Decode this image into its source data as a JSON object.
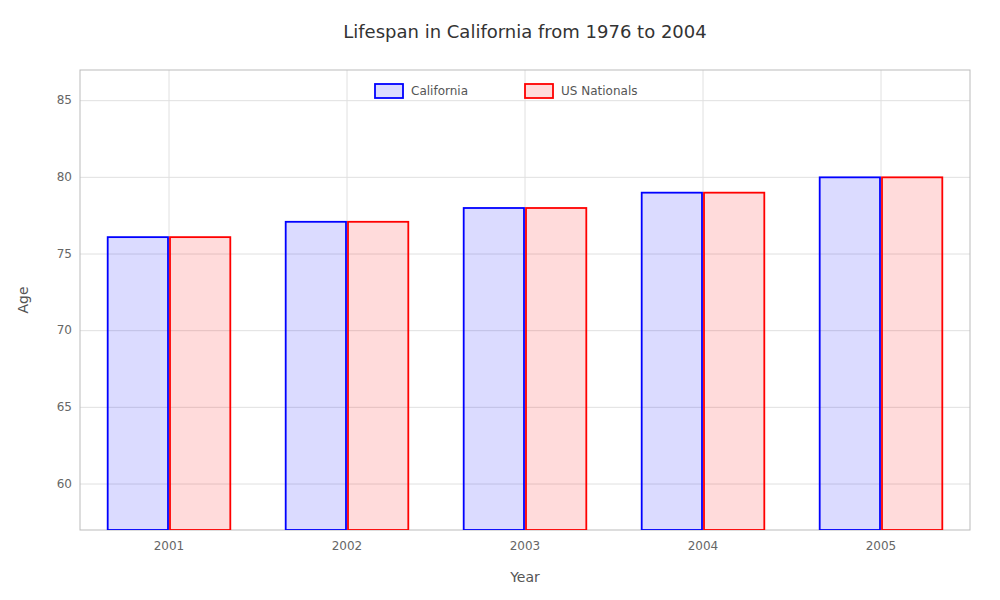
{
  "chart_data": {
    "type": "bar",
    "title": "Lifespan in California from 1976 to 2004",
    "xlabel": "Year",
    "ylabel": "Age",
    "categories": [
      "2001",
      "2002",
      "2003",
      "2004",
      "2005"
    ],
    "series": [
      {
        "name": "California",
        "color": "#0000ff",
        "values": [
          76.1,
          77.1,
          78.0,
          79.0,
          80.0
        ]
      },
      {
        "name": "US Nationals",
        "color": "#ff0000",
        "values": [
          76.1,
          77.1,
          78.0,
          79.0,
          80.0
        ]
      }
    ],
    "ylim": [
      57,
      87
    ],
    "yticks": [
      60,
      65,
      70,
      75,
      80,
      85
    ],
    "grid": true,
    "legend": "top"
  }
}
